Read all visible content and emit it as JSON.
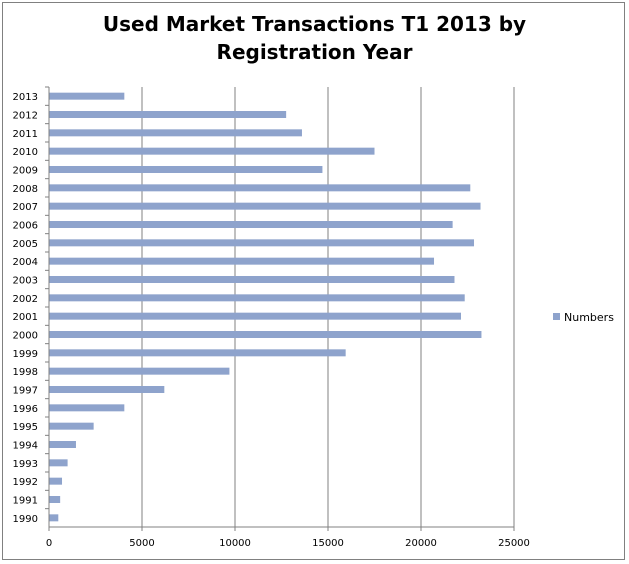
{
  "chart_data": {
    "type": "bar",
    "orientation": "horizontal",
    "title_line1": "Used Market Transactions T1 2013 by",
    "title_line2": "Registration Year",
    "categories": [
      "2013",
      "2012",
      "2011",
      "2010",
      "2009",
      "2008",
      "2007",
      "2006",
      "2005",
      "2004",
      "2003",
      "2002",
      "2001",
      "2000",
      "1999",
      "1998",
      "1997",
      "1996",
      "1995",
      "1994",
      "1993",
      "1992",
      "1991",
      "1990"
    ],
    "series": [
      {
        "name": "Numbers",
        "color": "#8EA3CC",
        "values": [
          4050,
          12750,
          13600,
          17500,
          14700,
          22650,
          23200,
          21700,
          22850,
          20700,
          21800,
          22350,
          22150,
          23250,
          15950,
          9700,
          6200,
          4050,
          2400,
          1450,
          1000,
          700,
          600,
          500
        ]
      }
    ],
    "xlim": [
      0,
      25000
    ],
    "xticks": [
      "0",
      "5000",
      "10000",
      "15000",
      "20000",
      "25000"
    ],
    "grid": "vertical",
    "legend_position": "right"
  }
}
